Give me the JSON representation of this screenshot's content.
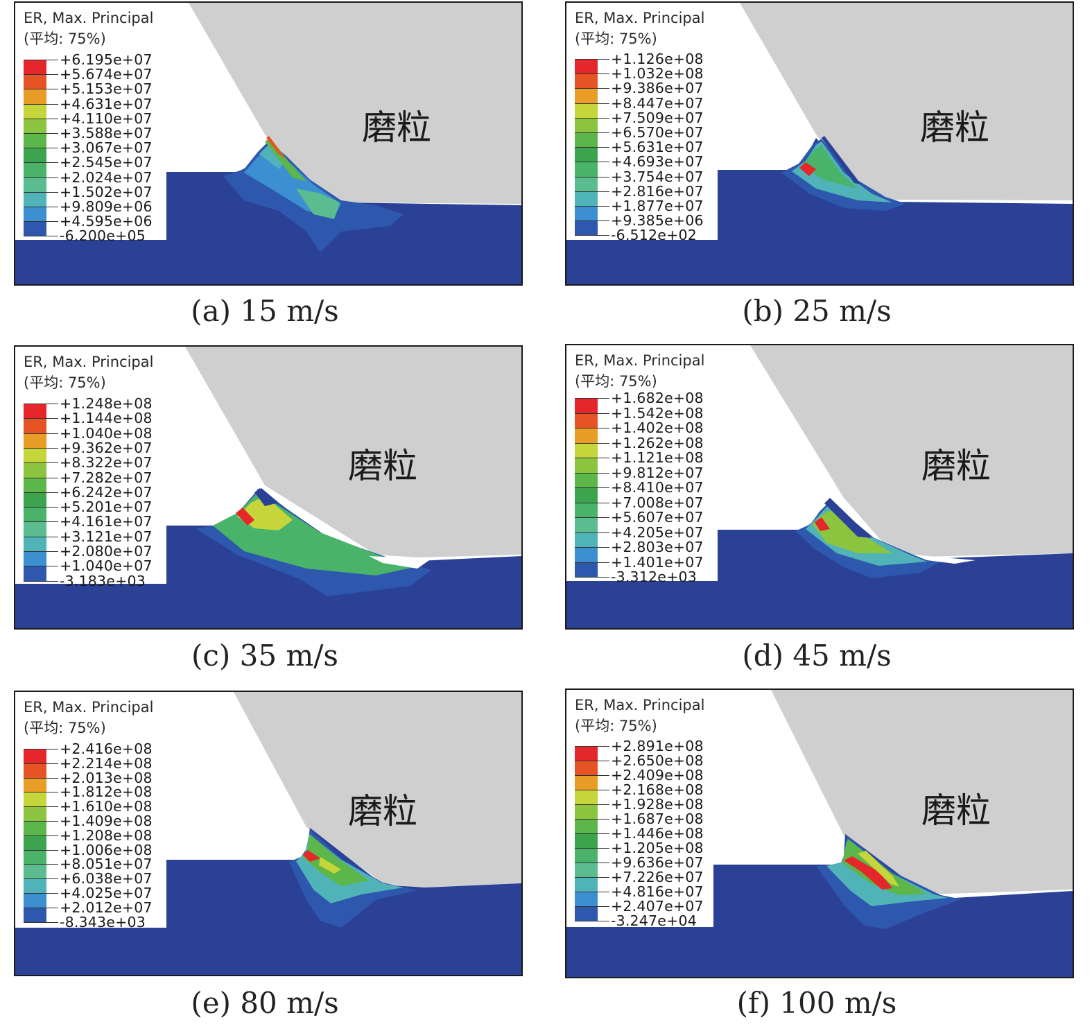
{
  "legend_colors": [
    "#e5262a",
    "#e65324",
    "#ea9d26",
    "#c6d63a",
    "#8bc43f",
    "#5cb649",
    "#3da44e",
    "#49b36a",
    "#5bbd8f",
    "#4fb3b8",
    "#3c8fd0",
    "#2e58ae",
    "#2b3f96"
  ],
  "colors": {
    "grain": "#cfcfcf",
    "workpiece": "#2b4196",
    "frame": "#1a1a1a"
  },
  "panels": [
    {
      "header1": "ER, Max. Principal",
      "header2": "(平均: 75%)",
      "values": [
        "+6.195e+07",
        "+5.674e+07",
        "+5.153e+07",
        "+4.631e+07",
        "+4.110e+07",
        "+3.588e+07",
        "+3.067e+07",
        "+2.545e+07",
        "+2.024e+07",
        "+1.502e+07",
        "+9.809e+06",
        "+4.595e+06",
        "-6.200e+05"
      ],
      "grain_label": "磨粒",
      "caption": "(a) 15 m/s"
    },
    {
      "header1": "ER, Max. Principal",
      "header2": "(平均: 75%)",
      "values": [
        "+1.126e+08",
        "+1.032e+08",
        "+9.386e+07",
        "+8.447e+07",
        "+7.509e+07",
        "+6.570e+07",
        "+5.631e+07",
        "+4.693e+07",
        "+3.754e+07",
        "+2.816e+07",
        "+1.877e+07",
        "+9.385e+06",
        "-6.512e+02"
      ],
      "grain_label": "磨粒",
      "caption": "(b) 25 m/s"
    },
    {
      "header1": "ER, Max. Principal",
      "header2": "(平均: 75%)",
      "values": [
        "+1.248e+08",
        "+1.144e+08",
        "+1.040e+08",
        "+9.362e+07",
        "+8.322e+07",
        "+7.282e+07",
        "+6.242e+07",
        "+5.201e+07",
        "+4.161e+07",
        "+3.121e+07",
        "+2.080e+07",
        "+1.040e+07",
        "-3.183e+03"
      ],
      "grain_label": "磨粒",
      "caption": "(c) 35 m/s"
    },
    {
      "header1": "ER, Max. Principal",
      "header2": "(平均: 75%)",
      "values": [
        "+1.682e+08",
        "+1.542e+08",
        "+1.402e+08",
        "+1.262e+08",
        "+1.121e+08",
        "+9.812e+07",
        "+8.410e+07",
        "+7.008e+07",
        "+5.607e+07",
        "+4.205e+07",
        "+2.803e+07",
        "+1.401e+07",
        "-3.312e+03"
      ],
      "grain_label": "磨粒",
      "caption": "(d) 45 m/s"
    },
    {
      "header1": "ER, Max. Principal",
      "header2": "(平均: 75%)",
      "values": [
        "+2.416e+08",
        "+2.214e+08",
        "+2.013e+08",
        "+1.812e+08",
        "+1.610e+08",
        "+1.409e+08",
        "+1.208e+08",
        "+1.006e+08",
        "+8.051e+07",
        "+6.038e+07",
        "+4.025e+07",
        "+2.012e+07",
        "-8.343e+03"
      ],
      "grain_label": "磨粒",
      "caption": "(e) 80 m/s"
    },
    {
      "header1": "ER, Max. Principal",
      "header2": "(平均: 75%)",
      "values": [
        "+2.891e+08",
        "+2.650e+08",
        "+2.409e+08",
        "+2.168e+08",
        "+1.928e+08",
        "+1.687e+08",
        "+1.446e+08",
        "+1.205e+08",
        "+9.636e+07",
        "+7.226e+07",
        "+4.816e+07",
        "+2.407e+07",
        "-3.247e+04"
      ],
      "grain_label": "磨粒",
      "caption": "(f) 100 m/s"
    }
  ]
}
